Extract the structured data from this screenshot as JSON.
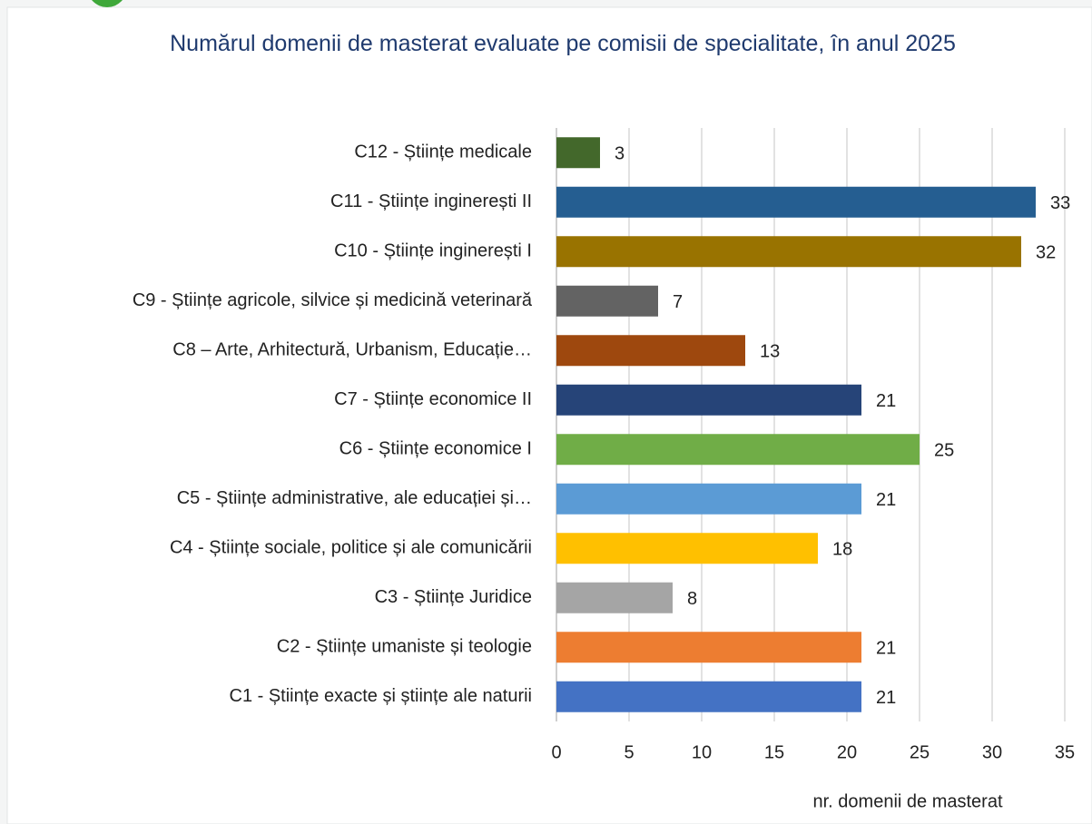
{
  "chart_data": {
    "type": "bar",
    "orientation": "horizontal",
    "title": "Numărul domenii de masterat evaluate pe comisii de specialitate, în anul 2025",
    "x_label": "nr. domenii de masterat",
    "categories": [
      "C12 - Științe medicale",
      "C11 - Științe inginerești II",
      "C10 - Științe inginerești I",
      "C9 - Științe agricole, silvice și medicină veterinară",
      "C8 – Arte, Arhitectură, Urbanism, Educație…",
      "C7 - Științe economice II",
      "C6 - Științe economice I",
      "C5 - Științe administrative, ale educației și…",
      "C4 - Științe sociale, politice și ale comunicării",
      "C3 - Științe Juridice",
      "C2 - Științe umaniste și teologie",
      "C1 - Științe exacte și științe ale naturii"
    ],
    "values": [
      3,
      33,
      32,
      7,
      13,
      21,
      25,
      21,
      18,
      8,
      21,
      21
    ],
    "colors": [
      "#43682b",
      "#255e91",
      "#997300",
      "#636363",
      "#9e480e",
      "#264478",
      "#70ad47",
      "#5b9bd5",
      "#ffc000",
      "#a5a5a5",
      "#ed7d31",
      "#4472c4"
    ],
    "xlim": [
      0,
      35
    ],
    "xticks": [
      0,
      5,
      10,
      15,
      20,
      25,
      30,
      35
    ],
    "grid": true
  }
}
